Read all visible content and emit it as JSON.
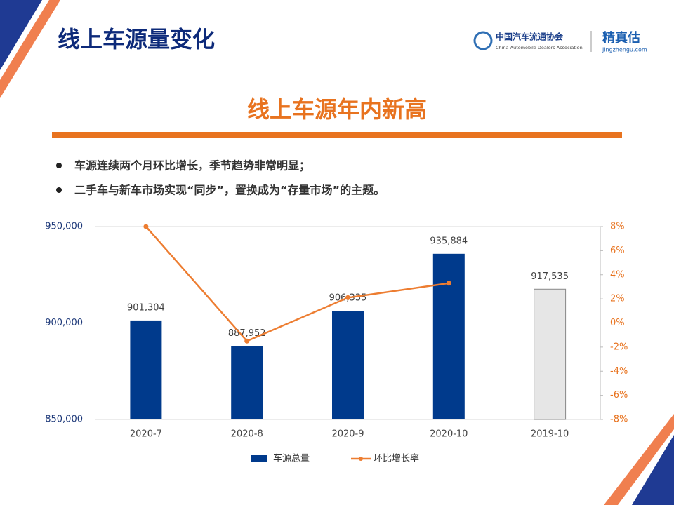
{
  "header": {
    "title": "线上车源量变化",
    "logo_cn": "中国汽车流通协会",
    "logo_en": "China Automobile Dealers Association",
    "brand": "精真估",
    "brand_url": "jingzhengu.com"
  },
  "subtitle": "线上车源年内新高",
  "bullets": [
    "车源连续两个月环比增长，季节趋势非常明显；",
    "二手车与新车市场实现“同步”，置换成为“存量市场”的主题。"
  ],
  "chart_data": {
    "type": "bar",
    "categories": [
      "2020-7",
      "2020-8",
      "2020-9",
      "2020-10",
      "2019-10"
    ],
    "series": [
      {
        "name": "车源总量",
        "type": "bar",
        "color": "#003a8c",
        "colors": [
          "#003a8c",
          "#003a8c",
          "#003a8c",
          "#003a8c",
          "#e6e6e6"
        ],
        "values": [
          901304,
          887952,
          906335,
          935884,
          917535
        ],
        "value_labels": [
          "901,304",
          "887,952",
          "906,335",
          "935,884",
          "917,535"
        ]
      },
      {
        "name": "环比增长率",
        "type": "line",
        "axis": "y2",
        "color": "#ed7d31",
        "values": [
          8,
          -1.5,
          2.1,
          3.3,
          null
        ]
      }
    ],
    "ylim": [
      850000,
      950000
    ],
    "yticks": [
      {
        "value": 850000,
        "label": "850,000"
      },
      {
        "value": 900000,
        "label": "900,000"
      },
      {
        "value": 950000,
        "label": "950,000"
      }
    ],
    "y2lim": [
      -8,
      8
    ],
    "y2ticks": [
      {
        "value": -8,
        "label": "-8%"
      },
      {
        "value": -6,
        "label": "-6%"
      },
      {
        "value": -4,
        "label": "-4%"
      },
      {
        "value": -2,
        "label": "-2%"
      },
      {
        "value": 0,
        "label": "0%"
      },
      {
        "value": 2,
        "label": "2%"
      },
      {
        "value": 4,
        "label": "4%"
      },
      {
        "value": 6,
        "label": "6%"
      },
      {
        "value": 8,
        "label": "8%"
      }
    ],
    "grid": true,
    "legend": "bottom"
  }
}
